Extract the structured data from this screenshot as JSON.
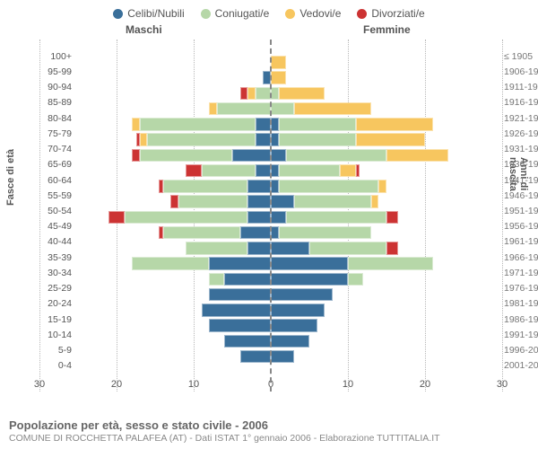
{
  "legend": [
    {
      "label": "Celibi/Nubili",
      "color": "#3a6f9a"
    },
    {
      "label": "Coniugati/e",
      "color": "#b6d7a8"
    },
    {
      "label": "Vedovi/e",
      "color": "#f7c65f"
    },
    {
      "label": "Divorziati/e",
      "color": "#cc3333"
    }
  ],
  "header_male": "Maschi",
  "header_female": "Femmine",
  "axis_left": "Fasce di età",
  "axis_right": "Anni di nascita",
  "title": "Popolazione per età, sesso e stato civile - 2006",
  "subtitle": "COMUNE DI ROCCHETTA PALAFEA (AT) - Dati ISTAT 1° gennaio 2006 - Elaborazione TUTTITALIA.IT",
  "xticks": [
    -30,
    -20,
    -10,
    0,
    10,
    20,
    30
  ],
  "xtick_labels": [
    "30",
    "20",
    "10",
    "0",
    "10",
    "20",
    "30"
  ],
  "xlim": [
    -30,
    30
  ],
  "colors": {
    "celibi": "#3a6f9a",
    "coniugati": "#b6d7a8",
    "vedovi": "#f7c65f",
    "divorziati": "#cc3333"
  },
  "background": "#ffffff",
  "grid_color": "#b8b8b8",
  "rows": [
    {
      "age": "100+",
      "birth": "≤ 1905",
      "m": [
        0,
        0,
        0,
        0
      ],
      "f": [
        0,
        0,
        0,
        0
      ]
    },
    {
      "age": "95-99",
      "birth": "1906-1910",
      "m": [
        0,
        0,
        0,
        0
      ],
      "f": [
        0,
        0,
        2,
        0
      ]
    },
    {
      "age": "90-94",
      "birth": "1911-1915",
      "m": [
        1,
        0,
        0,
        0
      ],
      "f": [
        0,
        0,
        2,
        0
      ]
    },
    {
      "age": "85-89",
      "birth": "1916-1920",
      "m": [
        0,
        2,
        1,
        1
      ],
      "f": [
        0,
        1,
        6,
        0
      ]
    },
    {
      "age": "80-84",
      "birth": "1921-1925",
      "m": [
        0,
        7,
        1,
        0
      ],
      "f": [
        0,
        3,
        10,
        0
      ]
    },
    {
      "age": "75-79",
      "birth": "1926-1930",
      "m": [
        2,
        15,
        1,
        0
      ],
      "f": [
        1,
        10,
        10,
        0
      ]
    },
    {
      "age": "70-74",
      "birth": "1931-1935",
      "m": [
        2,
        14,
        1,
        0.5
      ],
      "f": [
        1,
        10,
        9,
        0
      ]
    },
    {
      "age": "65-69",
      "birth": "1936-1940",
      "m": [
        5,
        12,
        0,
        1
      ],
      "f": [
        2,
        13,
        8,
        0
      ]
    },
    {
      "age": "60-64",
      "birth": "1941-1945",
      "m": [
        2,
        7,
        0,
        2
      ],
      "f": [
        1,
        8,
        2,
        0.5
      ]
    },
    {
      "age": "55-59",
      "birth": "1946-1950",
      "m": [
        3,
        11,
        0,
        0.5
      ],
      "f": [
        1,
        13,
        1,
        0
      ]
    },
    {
      "age": "50-54",
      "birth": "1951-1955",
      "m": [
        3,
        9,
        0,
        1
      ],
      "f": [
        3,
        10,
        1,
        0
      ]
    },
    {
      "age": "45-49",
      "birth": "1956-1960",
      "m": [
        3,
        16,
        0,
        2
      ],
      "f": [
        2,
        13,
        0,
        1.5
      ]
    },
    {
      "age": "40-44",
      "birth": "1961-1965",
      "m": [
        4,
        10,
        0,
        0.5
      ],
      "f": [
        1,
        12,
        0,
        0
      ]
    },
    {
      "age": "35-39",
      "birth": "1966-1970",
      "m": [
        3,
        8,
        0,
        0
      ],
      "f": [
        5,
        10,
        0,
        1.5
      ]
    },
    {
      "age": "30-34",
      "birth": "1971-1975",
      "m": [
        8,
        10,
        0,
        0
      ],
      "f": [
        10,
        11,
        0,
        0
      ]
    },
    {
      "age": "25-29",
      "birth": "1976-1980",
      "m": [
        6,
        2,
        0,
        0
      ],
      "f": [
        10,
        2,
        0,
        0
      ]
    },
    {
      "age": "20-24",
      "birth": "1981-1985",
      "m": [
        8,
        0,
        0,
        0
      ],
      "f": [
        8,
        0,
        0,
        0
      ]
    },
    {
      "age": "15-19",
      "birth": "1986-1990",
      "m": [
        9,
        0,
        0,
        0
      ],
      "f": [
        7,
        0,
        0,
        0
      ]
    },
    {
      "age": "10-14",
      "birth": "1991-1995",
      "m": [
        8,
        0,
        0,
        0
      ],
      "f": [
        6,
        0,
        0,
        0
      ]
    },
    {
      "age": "5-9",
      "birth": "1996-2000",
      "m": [
        6,
        0,
        0,
        0
      ],
      "f": [
        5,
        0,
        0,
        0
      ]
    },
    {
      "age": "0-4",
      "birth": "2001-2005",
      "m": [
        4,
        0,
        0,
        0
      ],
      "f": [
        3,
        0,
        0,
        0
      ]
    }
  ]
}
